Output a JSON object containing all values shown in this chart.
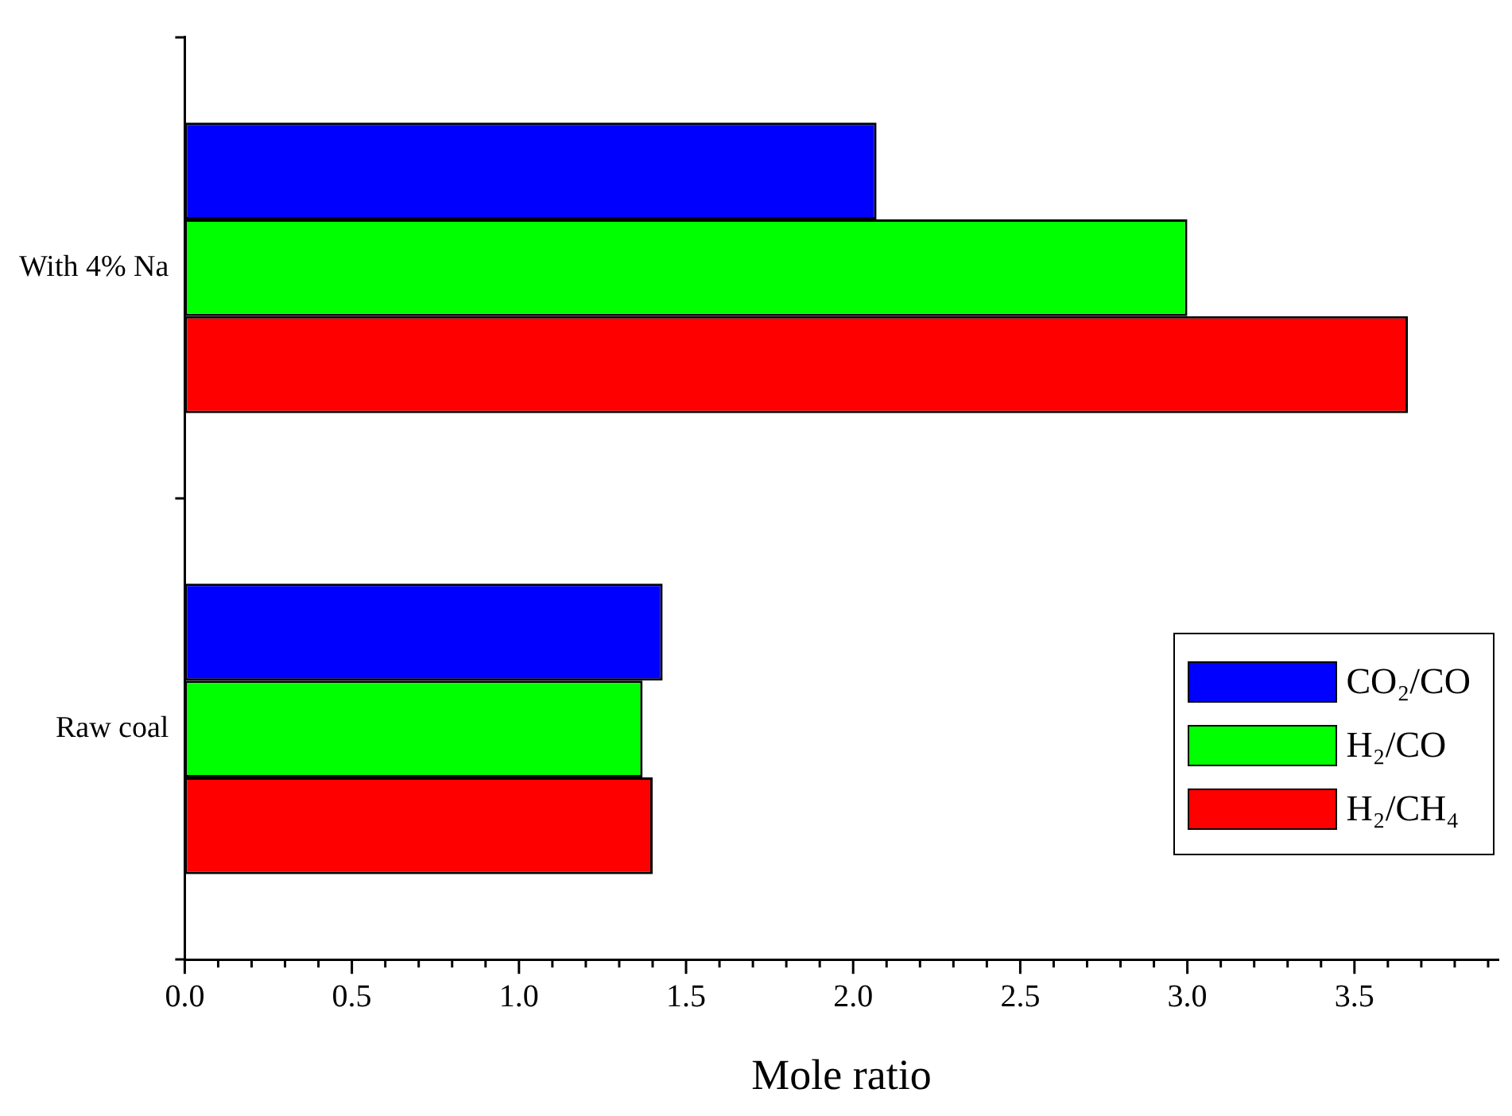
{
  "chart_data": {
    "type": "bar",
    "orientation": "horizontal",
    "xlabel": "Mole ratio",
    "categories": [
      "With 4% Na",
      "Raw coal"
    ],
    "series": [
      {
        "name": "CO₂/CO",
        "color": "#0000ff",
        "values": [
          2.07,
          1.43
        ]
      },
      {
        "name": "H₂/CO",
        "color": "#00ff00",
        "values": [
          3.0,
          1.37
        ]
      },
      {
        "name": "H₂/CH₄",
        "color": "#ff0000",
        "values": [
          3.66,
          1.4
        ]
      }
    ],
    "xlim": [
      0,
      3.93
    ],
    "xticks": [
      {
        "value": 0,
        "label": "0.0"
      },
      {
        "value": 0.1,
        "label": null
      },
      {
        "value": 0.2,
        "label": null
      },
      {
        "value": 0.3,
        "label": null
      },
      {
        "value": 0.4,
        "label": null
      },
      {
        "value": 0.5,
        "label": "0.5"
      },
      {
        "value": 0.6,
        "label": null
      },
      {
        "value": 0.7,
        "label": null
      },
      {
        "value": 0.8,
        "label": null
      },
      {
        "value": 0.9,
        "label": null
      },
      {
        "value": 1.0,
        "label": "1.0"
      },
      {
        "value": 1.1,
        "label": null
      },
      {
        "value": 1.2,
        "label": null
      },
      {
        "value": 1.3,
        "label": null
      },
      {
        "value": 1.4,
        "label": null
      },
      {
        "value": 1.5,
        "label": "1.5"
      },
      {
        "value": 1.6,
        "label": null
      },
      {
        "value": 1.7,
        "label": null
      },
      {
        "value": 1.8,
        "label": null
      },
      {
        "value": 1.9,
        "label": null
      },
      {
        "value": 2.0,
        "label": "2.0"
      },
      {
        "value": 2.1,
        "label": null
      },
      {
        "value": 2.2,
        "label": null
      },
      {
        "value": 2.3,
        "label": null
      },
      {
        "value": 2.4,
        "label": null
      },
      {
        "value": 2.5,
        "label": "2.5"
      },
      {
        "value": 2.6,
        "label": null
      },
      {
        "value": 2.7,
        "label": null
      },
      {
        "value": 2.8,
        "label": null
      },
      {
        "value": 2.9,
        "label": null
      },
      {
        "value": 3.0,
        "label": "3.0"
      },
      {
        "value": 3.1,
        "label": null
      },
      {
        "value": 3.2,
        "label": null
      },
      {
        "value": 3.3,
        "label": null
      },
      {
        "value": 3.4,
        "label": null
      },
      {
        "value": 3.5,
        "label": "3.5"
      },
      {
        "value": 3.6,
        "label": null
      },
      {
        "value": 3.7,
        "label": null
      },
      {
        "value": 3.8,
        "label": null
      },
      {
        "value": 3.9,
        "label": null
      }
    ],
    "grid": false,
    "legend": "bottom right"
  }
}
